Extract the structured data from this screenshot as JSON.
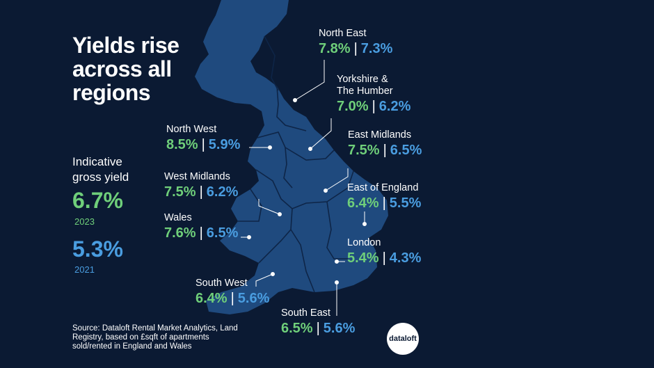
{
  "colors": {
    "background": "#0b1a33",
    "land": "#1f4a7e",
    "borders": "#0e2547",
    "yield_2023": "#6fcf7a",
    "yield_2021": "#4a9de0"
  },
  "title": "Yields rise\nacross all\nregions",
  "legend": {
    "label": "Indicative\ngross yield",
    "value_2023": "6.7%",
    "year_2023": "2023",
    "value_2021": "5.3%",
    "year_2021": "2021"
  },
  "regions": [
    {
      "name": "North East",
      "y2023": "7.8%",
      "y2021": "7.3%"
    },
    {
      "name": "Yorkshire &\nThe Humber",
      "y2023": "7.0%",
      "y2021": "6.2%"
    },
    {
      "name": "North West",
      "y2023": "8.5%",
      "y2021": "5.9%"
    },
    {
      "name": "East Midlands",
      "y2023": "7.5%",
      "y2021": "6.5%"
    },
    {
      "name": "West Midlands",
      "y2023": "7.5%",
      "y2021": "6.2%"
    },
    {
      "name": "East of England",
      "y2023": "6.4%",
      "y2021": "5.5%"
    },
    {
      "name": "Wales",
      "y2023": "7.6%",
      "y2021": "6.5%"
    },
    {
      "name": "London",
      "y2023": "5.4%",
      "y2021": "4.3%"
    },
    {
      "name": "South West",
      "y2023": "6.4%",
      "y2021": "5.6%"
    },
    {
      "name": "South East",
      "y2023": "6.5%",
      "y2021": "5.6%"
    }
  ],
  "separator": "|",
  "source": "Source: Dataloft Rental Market Analytics, Land Registry, based on £sqft of apartments sold/rented in England and Wales",
  "logo": "dataloft"
}
